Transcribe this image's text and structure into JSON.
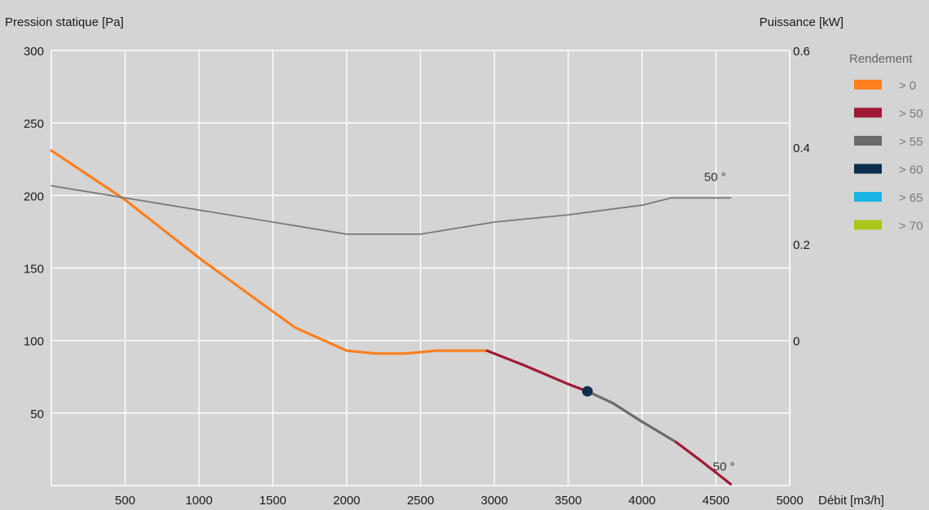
{
  "chart_data": {
    "type": "line",
    "title": "",
    "xlabel": "Débit [m3/h]",
    "ylabel": "Pression statique [Pa]",
    "y2label": "Puissance [kW]",
    "xlim": [
      0,
      5000
    ],
    "ylim": [
      0,
      300
    ],
    "y2lim": [
      -0.3,
      0.6
    ],
    "x_ticks": [
      500,
      1000,
      1500,
      2000,
      2500,
      3000,
      3500,
      4000,
      4500,
      5000
    ],
    "y_ticks": [
      50,
      100,
      150,
      200,
      250,
      300
    ],
    "y2_ticks": [
      0,
      0.2,
      0.4,
      0.6
    ],
    "y2_tick_labels": [
      "0",
      "0.2",
      "0.4",
      "0.6"
    ],
    "grid": true,
    "legend": {
      "title": "Rendement",
      "placement": "right",
      "items": [
        {
          "label": "> 0",
          "color": "#ff7f1e"
        },
        {
          "label": "> 50",
          "color": "#9e1a35"
        },
        {
          "label": "> 55",
          "color": "#6b6b6b"
        },
        {
          "label": "> 60",
          "color": "#0d2e4f"
        },
        {
          "label": "> 65",
          "color": "#1ab3e6"
        },
        {
          "label": "> 70",
          "color": "#a8c61a"
        }
      ]
    },
    "series": [
      {
        "axis": "left",
        "color": "#ff7f1e",
        "x": [
          0,
          500,
          1000,
          1500,
          1650,
          2000,
          2200,
          2400,
          2600,
          2950
        ],
        "y": [
          231,
          197,
          157,
          120,
          109,
          93,
          91,
          91,
          93,
          93
        ]
      },
      {
        "axis": "left",
        "color": "#9e1a35",
        "x": [
          2950,
          3200,
          3500,
          3630
        ],
        "y": [
          93,
          83,
          70,
          65
        ]
      },
      {
        "axis": "left",
        "color": "#6b6b6b",
        "x": [
          3630,
          3800,
          4000,
          4230
        ],
        "y": [
          65,
          57,
          44,
          30
        ]
      },
      {
        "axis": "left",
        "color": "#9e1a35",
        "x": [
          4230,
          4400,
          4600
        ],
        "y": [
          30,
          17,
          1
        ]
      },
      {
        "axis": "right",
        "color": "#7a7a7a",
        "x": [
          0,
          500,
          1000,
          1500,
          2000,
          2500,
          3000,
          3500,
          4000,
          4200,
          4600
        ],
        "y": [
          0.32,
          0.295,
          0.27,
          0.245,
          0.22,
          0.22,
          0.245,
          0.26,
          0.28,
          0.295,
          0.295
        ]
      }
    ],
    "operating_point": {
      "x": 3630,
      "y": 65,
      "color": "#0d2e4f"
    },
    "annotations": [
      {
        "text": "50 °",
        "x": 4420,
        "y": 0.32,
        "axis": "right"
      },
      {
        "text": "50 °",
        "x": 4480,
        "y": 7,
        "axis": "left"
      }
    ],
    "background": "#d4d4d4",
    "grid_color": "#ffffff"
  }
}
